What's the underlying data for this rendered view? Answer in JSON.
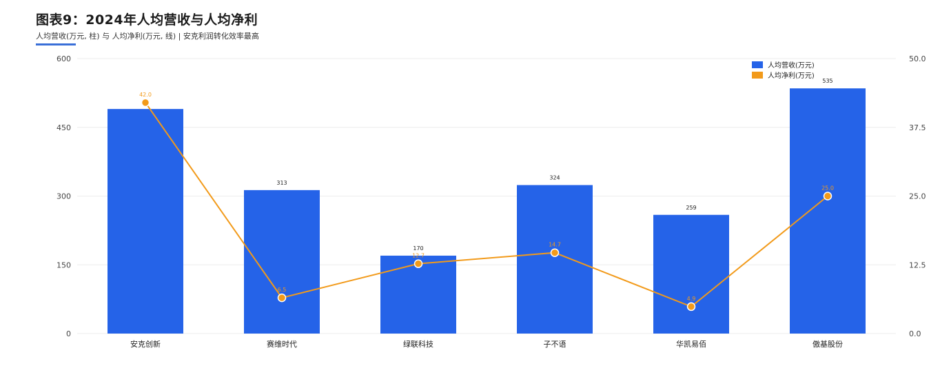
{
  "header": {
    "title": "图表9：2024年人均营收与人均净利",
    "subtitle": "人均营收(万元, 柱) 与 人均净利(万元, 线)   |   安克利润转化效率最高"
  },
  "chart_data": {
    "type": "bar",
    "title": "图表9：2024年人均营收与人均净利",
    "subtitle": "人均营收(万元, 柱) 与 人均净利(万元, 线)   |   安克利润转化效率最高",
    "categories": [
      "安克创新",
      "赛维时代",
      "绿联科技",
      "子不语",
      "华凯易佰",
      "傲基股份"
    ],
    "series": [
      {
        "name": "人均营收(万元)",
        "type": "bar",
        "axis": "left",
        "color": "#2563e8",
        "values": [
          490,
          313,
          170,
          324,
          259,
          535
        ],
        "labels": [
          "",
          "313",
          "170",
          "324",
          "259",
          "535"
        ]
      },
      {
        "name": "人均净利(万元)",
        "type": "line",
        "axis": "right",
        "color": "#f29a1a",
        "values": [
          42.0,
          6.5,
          12.7,
          14.7,
          4.9,
          25.0
        ],
        "labels": [
          "42.0",
          "6.5",
          "12.7",
          "14.7",
          "4.9",
          "25.0"
        ]
      }
    ],
    "y_left": {
      "min": 0,
      "max": 600,
      "ticks": [
        0,
        150,
        300,
        450,
        600
      ],
      "tick_labels": [
        "0",
        "150",
        "300",
        "450",
        "600"
      ]
    },
    "y_right": {
      "min": 0,
      "max": 50,
      "ticks": [
        0,
        12.5,
        25,
        37.5,
        50
      ],
      "tick_labels": [
        "0.0",
        "12.5",
        "25.0",
        "37.5",
        "50.0"
      ]
    },
    "grid": true,
    "legend_position": "top-right"
  }
}
